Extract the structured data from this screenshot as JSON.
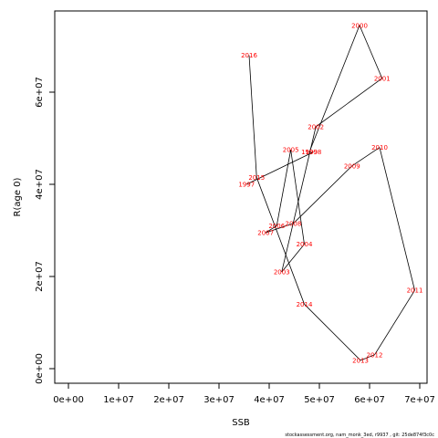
{
  "chart_data": {
    "type": "line",
    "xlabel": "SSB",
    "ylabel": "R(age 0)",
    "xlim": [
      0,
      70000000
    ],
    "ylim": [
      0,
      70000000
    ],
    "x_ticks": [
      0,
      10000000,
      20000000,
      30000000,
      40000000,
      50000000,
      60000000,
      70000000
    ],
    "x_tick_labels": [
      "0e+00",
      "1e+07",
      "2e+07",
      "3e+07",
      "4e+07",
      "5e+07",
      "6e+07",
      "7e+07"
    ],
    "y_ticks": [
      0,
      20000000,
      40000000,
      60000000
    ],
    "y_tick_labels": [
      "0e+00",
      "2e+07",
      "4e+07",
      "6e+07"
    ],
    "grid": false,
    "line_color": "#000000",
    "label_color": "#ff0000",
    "points": [
      {
        "label": "1997",
        "x": 35500000,
        "y": 40000000
      },
      {
        "label": "1998",
        "x": 48800000,
        "y": 47000000
      },
      {
        "label": "1999",
        "x": 48000000,
        "y": 47000000
      },
      {
        "label": "2000",
        "x": 58000000,
        "y": 74500000
      },
      {
        "label": "2001",
        "x": 62500000,
        "y": 63000000
      },
      {
        "label": "2002",
        "x": 49300000,
        "y": 52500000
      },
      {
        "label": "2003",
        "x": 42500000,
        "y": 21000000
      },
      {
        "label": "2004",
        "x": 47000000,
        "y": 27000000
      },
      {
        "label": "2005",
        "x": 44300000,
        "y": 47500000
      },
      {
        "label": "2006",
        "x": 41500000,
        "y": 31000000
      },
      {
        "label": "2007",
        "x": 39300000,
        "y": 29500000
      },
      {
        "label": "2008",
        "x": 44800000,
        "y": 31500000
      },
      {
        "label": "2009",
        "x": 56500000,
        "y": 44000000
      },
      {
        "label": "2010",
        "x": 62000000,
        "y": 48000000
      },
      {
        "label": "2011",
        "x": 69000000,
        "y": 17000000
      },
      {
        "label": "2012",
        "x": 61000000,
        "y": 3000000
      },
      {
        "label": "2013",
        "x": 58200000,
        "y": 1800000
      },
      {
        "label": "2014",
        "x": 47000000,
        "y": 14000000
      },
      {
        "label": "2015",
        "x": 37500000,
        "y": 41500000
      },
      {
        "label": "2016",
        "x": 36000000,
        "y": 68000000
      }
    ]
  },
  "footer_text": "stockassessment.org, nam_monk_3ed, r9937 , git: 25de874f3c0c"
}
